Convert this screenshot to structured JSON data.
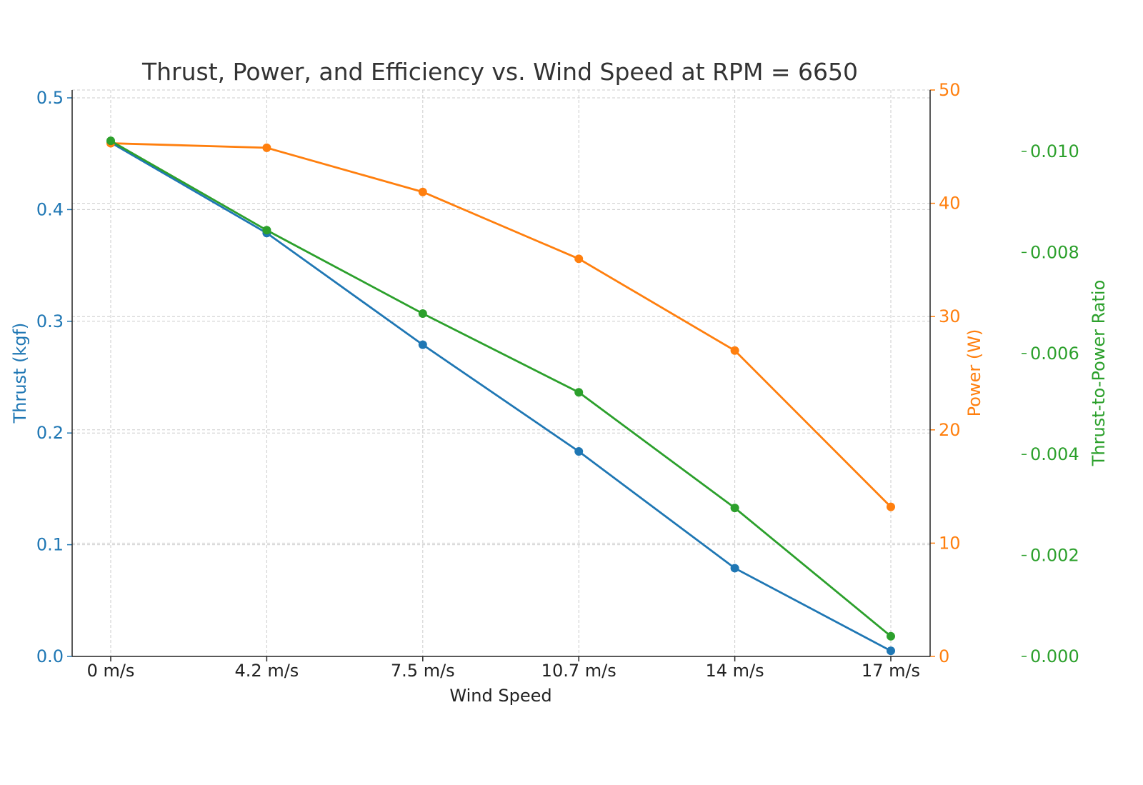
{
  "chart_data": {
    "type": "line",
    "title": "Thrust, Power, and Efficiency vs. Wind Speed at RPM = 6650",
    "xlabel": "Wind Speed",
    "categories": [
      "0 m/s",
      "4.2 m/s",
      "7.5 m/s",
      "10.7 m/s",
      "14 m/s",
      "17 m/s"
    ],
    "grid": true,
    "axes": [
      {
        "id": "thrust",
        "label": "Thrust (kgf)",
        "side": "left",
        "ylim": [
          0,
          0.5
        ],
        "ticks": [
          "0.0",
          "0.1",
          "0.2",
          "0.3",
          "0.4",
          "0.5"
        ],
        "color": "#1f77b4"
      },
      {
        "id": "power",
        "label": "Power (W)",
        "side": "right",
        "ylim": [
          0,
          50
        ],
        "ticks": [
          "0",
          "10",
          "20",
          "30",
          "40",
          "50"
        ],
        "color": "#ff7f0e"
      },
      {
        "id": "ratio",
        "label": "Thrust-to-Power Ratio",
        "side": "right-outer",
        "ylim": [
          0,
          0.01
        ],
        "ticks": [
          "0.000",
          "0.002",
          "0.004",
          "0.006",
          "0.008",
          "0.010"
        ],
        "color": "#2ca02c"
      }
    ],
    "series": [
      {
        "axis": "thrust",
        "color": "#1f77b4",
        "values": [
          0.46,
          0.379,
          0.279,
          0.1835,
          0.079,
          0.005
        ]
      },
      {
        "axis": "power",
        "color": "#ff7f0e",
        "values": [
          45.3,
          44.9,
          41.0,
          35.1,
          27.0,
          13.2
        ]
      },
      {
        "axis": "ratio",
        "color": "#2ca02c",
        "values": [
          0.01021,
          0.00844,
          0.00679,
          0.00523,
          0.00294,
          0.0004
        ]
      }
    ]
  }
}
